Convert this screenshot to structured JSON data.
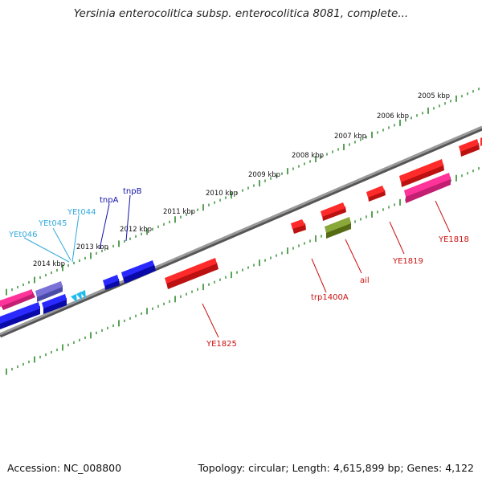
{
  "title": "Yersinia enterocolitica subsp. enterocolitica 8081, complete...",
  "footer": {
    "accession": "Accession: NC_008800",
    "topology": "Topology: circular; Length: 4,615,899 bp; Genes: 4,122"
  },
  "colors": {
    "backbone": "#7a7a7a",
    "ticks": "#2e8b2e",
    "gene_red": "#ff1a1a",
    "gene_blue": "#1a1aff",
    "gene_pink": "#ff3399",
    "gene_purple": "#6666cc",
    "gene_olive": "#7a9a2a",
    "gene_cyan": "#22bbee",
    "label_red": "#cc1111",
    "label_blue": "#1111aa",
    "label_cyan": "#33aadd"
  },
  "kbp_labels": [
    "2014 kbp",
    "2013 kbp",
    "2012 kbp",
    "2011 kbp",
    "2010 kbp",
    "2009 kbp",
    "2008 kbp",
    "2007 kbp",
    "2006 kbp",
    "2005 kbp"
  ],
  "gene_labels": {
    "yet046": "YEt046",
    "yet045": "YEt045",
    "yet044": "YEt044",
    "tnpA": "tnpA",
    "tnpB": "tnpB",
    "ye1825": "YE1825",
    "trp1400A": "trp1400A",
    "ail": "ail",
    "ye1819": "YE1819",
    "ye1818": "YE1818"
  }
}
